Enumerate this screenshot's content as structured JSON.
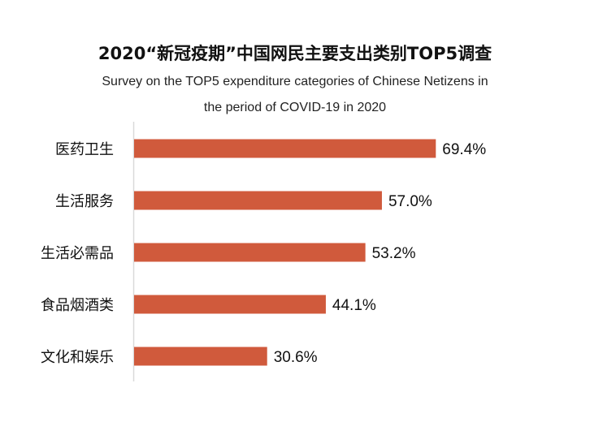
{
  "chart_data": {
    "type": "bar",
    "orientation": "horizontal",
    "title": "2020“新冠疫期”中国网民主要支出类别TOP5调查",
    "subtitle": [
      "Survey on the TOP5 expenditure categories of Chinese Netizens in",
      "the period of COVID-19 in 2020"
    ],
    "categories": [
      "医药卫生",
      "生活服务",
      "生活必需品",
      "食品烟酒类",
      "文化和娱乐"
    ],
    "values": [
      69.4,
      57.0,
      53.2,
      44.1,
      30.6
    ],
    "value_labels": [
      "69.4%",
      "57.0%",
      "53.2%",
      "44.1%",
      "30.6%"
    ],
    "unit": "%",
    "xlim": [
      0,
      100
    ],
    "grid": false,
    "bar_color": "#D05A3C"
  }
}
